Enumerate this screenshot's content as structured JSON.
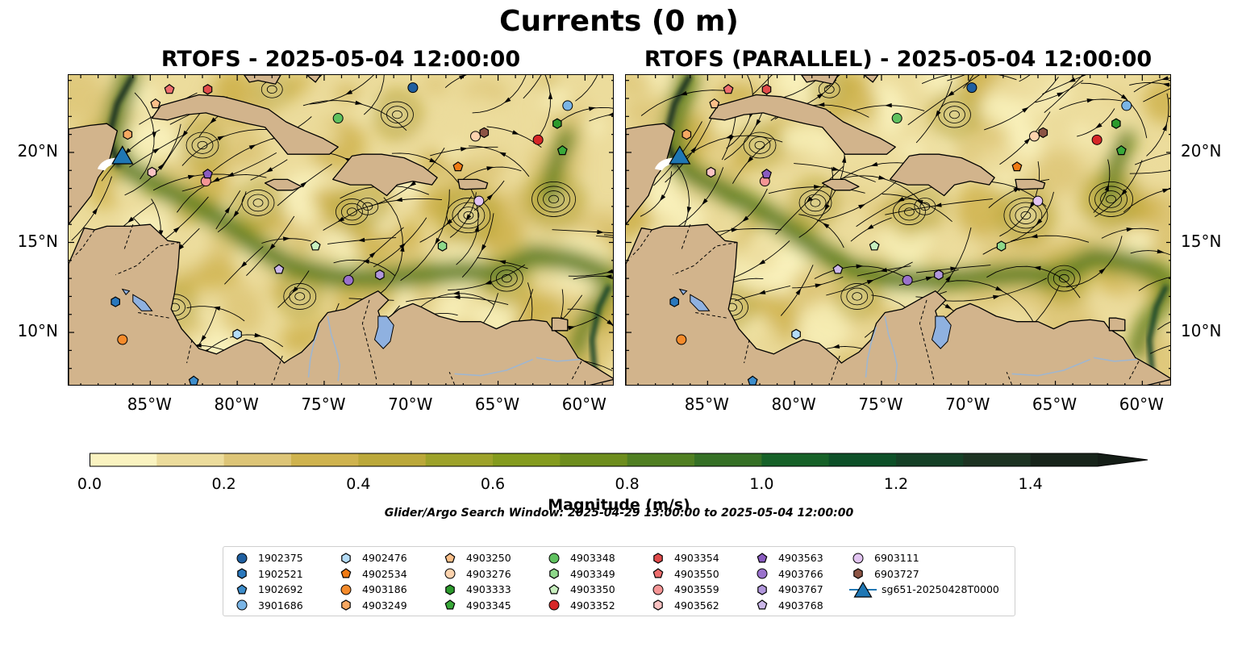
{
  "figure": {
    "title": "Currents (0 m)",
    "panels": [
      {
        "title": "RTOFS - 2025-05-04 12:00:00"
      },
      {
        "title": "RTOFS (PARALLEL) - 2025-05-04 12:00:00"
      }
    ],
    "lon_ticks": [
      "85°W",
      "80°W",
      "75°W",
      "70°W",
      "65°W",
      "60°W"
    ],
    "lat_ticks": [
      "20°N",
      "15°N",
      "10°N"
    ],
    "extent": {
      "lon_min": -89.7,
      "lon_max": -58.3,
      "lat_min": 7.0,
      "lat_max": 24.3
    },
    "colors": {
      "land": "#d2b48c",
      "lake": "#8fb1e0",
      "river": "#9fb6d0",
      "ocean_low": "#fbf5c0",
      "ocean_high": "#0c3a1c"
    }
  },
  "colorbar": {
    "label": "Magnitude (m/s)",
    "ticks": [
      "0.0",
      "0.2",
      "0.4",
      "0.6",
      "0.8",
      "1.0",
      "1.2",
      "1.4"
    ],
    "min": 0.0,
    "max": 1.5,
    "step": 0.1,
    "extend": "max",
    "colors": [
      "#faf3c0",
      "#ecdc9c",
      "#ddc577",
      "#cfb34e",
      "#bba83a",
      "#9da22a",
      "#849b1e",
      "#6d8d1d",
      "#507f22",
      "#357025",
      "#166128",
      "#0d5028",
      "#154026",
      "#1d3322",
      "#17241a"
    ]
  },
  "search_window": "Glider/Argo Search Window: 2025-04-29 13:00:00 to 2025-05-04 12:00:00",
  "legend": {
    "columns": [
      [
        {
          "id": "1902375",
          "marker": "circle",
          "color": "#1f5fa0"
        },
        {
          "id": "1902521",
          "marker": "hexagon",
          "color": "#2a78bd"
        },
        {
          "id": "1902692",
          "marker": "pentagon",
          "color": "#3d8dcb"
        },
        {
          "id": "3901686",
          "marker": "circle",
          "color": "#7ab5e6"
        }
      ],
      [
        {
          "id": "4902476",
          "marker": "hexagon",
          "color": "#b4dcf7"
        },
        {
          "id": "4902534",
          "marker": "pentagon",
          "color": "#f07b14"
        },
        {
          "id": "4903186",
          "marker": "circle",
          "color": "#f58b2b"
        },
        {
          "id": "4903249",
          "marker": "hexagon",
          "color": "#f7a862"
        }
      ],
      [
        {
          "id": "4903250",
          "marker": "pentagon",
          "color": "#fbbf89"
        },
        {
          "id": "4903276",
          "marker": "circle",
          "color": "#fdd3ae"
        },
        {
          "id": "4903333",
          "marker": "hexagon",
          "color": "#2c9a2c"
        },
        {
          "id": "4903345",
          "marker": "pentagon",
          "color": "#3aa93a"
        }
      ],
      [
        {
          "id": "4903348",
          "marker": "circle",
          "color": "#5fc15f"
        },
        {
          "id": "4903349",
          "marker": "hexagon",
          "color": "#8ed88a"
        },
        {
          "id": "4903350",
          "marker": "pentagon",
          "color": "#c8efbf"
        },
        {
          "id": "4903352",
          "marker": "circle",
          "color": "#d62728"
        }
      ],
      [
        {
          "id": "4903354",
          "marker": "hexagon",
          "color": "#e14b4b"
        },
        {
          "id": "4903550",
          "marker": "pentagon",
          "color": "#ed6d6d"
        },
        {
          "id": "4903559",
          "marker": "circle",
          "color": "#f59595"
        },
        {
          "id": "4903562",
          "marker": "hexagon",
          "color": "#fbc3c3"
        }
      ],
      [
        {
          "id": "4903563",
          "marker": "pentagon",
          "color": "#8a5cc0"
        },
        {
          "id": "4903766",
          "marker": "circle",
          "color": "#9a72cc"
        },
        {
          "id": "4903767",
          "marker": "hexagon",
          "color": "#b197dc"
        },
        {
          "id": "4903768",
          "marker": "pentagon",
          "color": "#cbb7e9"
        }
      ],
      [
        {
          "id": "6903111",
          "marker": "circle",
          "color": "#e2c4f1"
        },
        {
          "id": "6903727",
          "marker": "hexagon",
          "color": "#8c5444"
        },
        {
          "id": "sg651-20250428T0000",
          "marker": "triangle",
          "color": "#1f77b4"
        }
      ]
    ]
  },
  "floats": [
    {
      "id": "1902375",
      "lon": -69.9,
      "lat": 23.6
    },
    {
      "id": "1902521",
      "lon": -87.0,
      "lat": 11.7
    },
    {
      "id": "1902692",
      "lon": -82.5,
      "lat": 7.3
    },
    {
      "id": "3901686",
      "lon": -61.0,
      "lat": 22.6
    },
    {
      "id": "4902476",
      "lon": -80.0,
      "lat": 9.9
    },
    {
      "id": "4902534",
      "lon": -67.3,
      "lat": 19.2
    },
    {
      "id": "4903186",
      "lon": -86.6,
      "lat": 9.6
    },
    {
      "id": "4903249",
      "lon": -86.3,
      "lat": 21.0
    },
    {
      "id": "4903250",
      "lon": -84.7,
      "lat": 22.7
    },
    {
      "id": "4903276",
      "lon": -66.3,
      "lat": 20.9
    },
    {
      "id": "4903333",
      "lon": -61.6,
      "lat": 21.6
    },
    {
      "id": "4903345",
      "lon": -61.3,
      "lat": 20.1
    },
    {
      "id": "4903348",
      "lon": -74.2,
      "lat": 21.9
    },
    {
      "id": "4903349",
      "lon": -68.2,
      "lat": 14.8
    },
    {
      "id": "4903350",
      "lon": -75.5,
      "lat": 14.8
    },
    {
      "id": "4903352",
      "lon": -62.7,
      "lat": 20.7
    },
    {
      "id": "4903354",
      "lon": -81.7,
      "lat": 23.5
    },
    {
      "id": "4903550",
      "lon": -83.9,
      "lat": 23.5
    },
    {
      "id": "4903559",
      "lon": -81.8,
      "lat": 18.4
    },
    {
      "id": "4903562",
      "lon": -84.9,
      "lat": 18.9
    },
    {
      "id": "4903563",
      "lon": -81.7,
      "lat": 18.8
    },
    {
      "id": "4903766",
      "lon": -73.6,
      "lat": 12.9
    },
    {
      "id": "4903767",
      "lon": -71.8,
      "lat": 13.2
    },
    {
      "id": "4903768",
      "lon": -77.6,
      "lat": 13.5
    },
    {
      "id": "6903111",
      "lon": -66.1,
      "lat": 17.3
    },
    {
      "id": "6903727",
      "lon": -65.8,
      "lat": 21.1
    }
  ],
  "glider": {
    "id": "sg651-20250428T0000",
    "lon": -86.6,
    "lat": 19.8
  }
}
